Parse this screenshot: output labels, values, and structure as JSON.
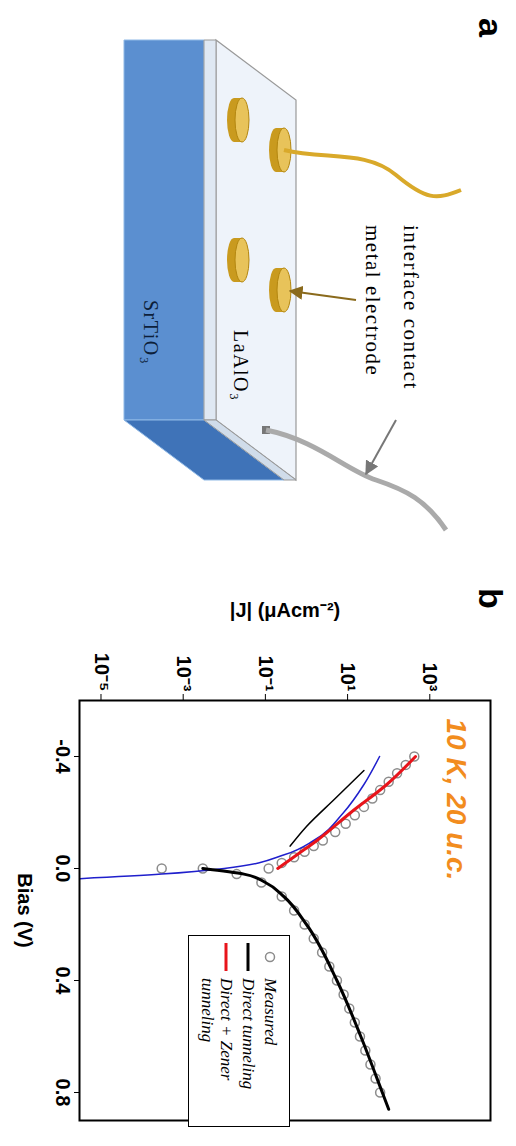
{
  "panel_a": {
    "panel_label": "a",
    "labels": {
      "interface_contact": "interface contact",
      "metal_electrode": "metal electrode",
      "top_layer": "LaAlO₃",
      "substrate": "SrTiO₃"
    }
  },
  "chart_data": {
    "type": "line",
    "panel_label": "b",
    "annotation": "10 K, 20 u.c.",
    "x_label": "Bias (V)",
    "y_label": "|J| (μAcm⁻²)",
    "log": "y",
    "xlim": [
      -0.6,
      0.9
    ],
    "xticks": [
      -0.4,
      {
        "value": 0,
        "label": "0.0"
      },
      0.4,
      0.8
    ],
    "ylim": [
      3e-06,
      30000
    ],
    "yticks": [
      {
        "value": 1e-05,
        "label": "10⁻⁵"
      },
      {
        "value": 0.001,
        "label": "10⁻³"
      },
      {
        "value": 0.1,
        "label": "10⁻¹"
      },
      {
        "value": 10,
        "label": "10¹"
      },
      {
        "value": 1000,
        "label": "10³"
      }
    ],
    "legend": "bottom-right",
    "series": [
      {
        "name": "Measured",
        "type": "scatter",
        "marker": "circle",
        "color": "#8c8c8c",
        "x": [
          -0.4,
          -0.37,
          -0.34,
          -0.31,
          -0.28,
          -0.25,
          -0.22,
          -0.19,
          -0.16,
          -0.13,
          -0.1,
          -0.08,
          -0.06,
          -0.04,
          -0.02,
          0.0,
          0.0,
          0.0,
          0.02,
          0.05,
          0.1,
          0.15,
          0.2,
          0.25,
          0.3,
          0.35,
          0.4,
          0.45,
          0.5,
          0.55,
          0.6,
          0.65,
          0.7,
          0.75,
          0.8
        ],
        "values": [
          420,
          260,
          160,
          100,
          62,
          40,
          25,
          15,
          9,
          5,
          2.5,
          1.5,
          0.9,
          0.5,
          0.25,
          0.12,
          0.003,
          0.0003,
          0.02,
          0.08,
          0.25,
          0.5,
          0.9,
          1.5,
          2.4,
          3.6,
          5.5,
          8,
          11,
          15,
          20,
          27,
          36,
          48,
          62
        ]
      },
      {
        "name": null,
        "type": "line",
        "line_style": "solid",
        "color": "#1f1fcc",
        "x": [
          0.04,
          0.02,
          0.0,
          -0.05,
          -0.1,
          -0.2,
          -0.3,
          -0.4
        ],
        "values": [
          1e-06,
          0.0003,
          0.01,
          0.3,
          1.5,
          8,
          25,
          60
        ]
      },
      {
        "name": "Direct tunneling",
        "type": "line",
        "line_style": "solid",
        "color": "#000000",
        "x": [
          -0.35,
          -0.25,
          -0.15,
          -0.08,
          null,
          0.0,
          0.02,
          0.05,
          0.1,
          0.2,
          0.4,
          0.6,
          0.8,
          0.86
        ],
        "values": [
          25,
          5,
          1,
          0.4,
          null,
          0.003,
          0.03,
          0.1,
          0.28,
          1,
          5.5,
          21,
          70,
          100
        ]
      },
      {
        "name": "Direct + Zener tunneling",
        "type": "line",
        "line_style": "solid",
        "color": "#e8141b",
        "x": [
          -0.4,
          -0.3,
          -0.2,
          -0.1,
          -0.05,
          0.0
        ],
        "values": [
          450,
          90,
          12,
          1.8,
          0.6,
          0.2
        ]
      }
    ]
  }
}
